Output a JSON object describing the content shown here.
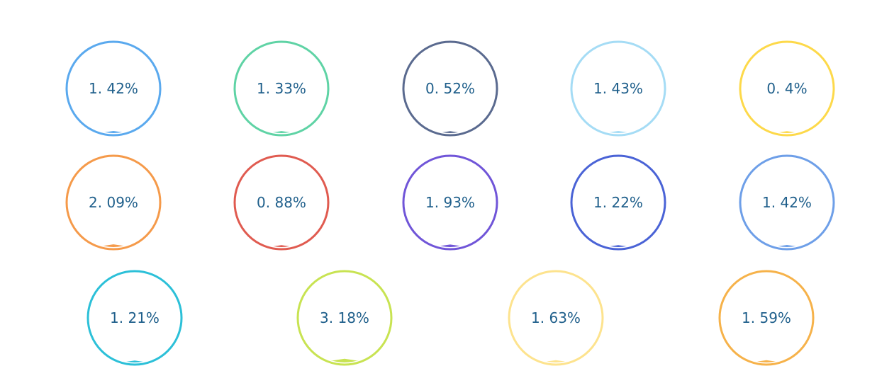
{
  "chart_data": {
    "type": "liquidfill",
    "unit": "%",
    "gauges": [
      {
        "label": "1. 42%",
        "value": 1.42,
        "color": "#5aa9ee"
      },
      {
        "label": "1. 33%",
        "value": 1.33,
        "color": "#5fd3a5"
      },
      {
        "label": "0. 52%",
        "value": 0.52,
        "color": "#5a6a8f"
      },
      {
        "label": "1. 43%",
        "value": 1.43,
        "color": "#a5dcf5"
      },
      {
        "label": "0. 4%",
        "value": 0.4,
        "color": "#fdd94a"
      },
      {
        "label": "2. 09%",
        "value": 2.09,
        "color": "#f59a4a"
      },
      {
        "label": "0. 88%",
        "value": 0.88,
        "color": "#e05b50"
      },
      {
        "label": "1. 93%",
        "value": 1.93,
        "color": "#7055d8"
      },
      {
        "label": "1. 22%",
        "value": 1.22,
        "color": "#4a63d6"
      },
      {
        "label": "1. 42%",
        "value": 1.42,
        "color": "#6e9fe8"
      },
      {
        "label": "1. 21%",
        "value": 1.21,
        "color": "#2cc0d8"
      },
      {
        "label": "3. 18%",
        "value": 3.18,
        "color": "#c8e352"
      },
      {
        "label": "1. 63%",
        "value": 1.63,
        "color": "#fde38e"
      },
      {
        "label": "1. 59%",
        "value": 1.59,
        "color": "#f6b24a"
      }
    ]
  }
}
